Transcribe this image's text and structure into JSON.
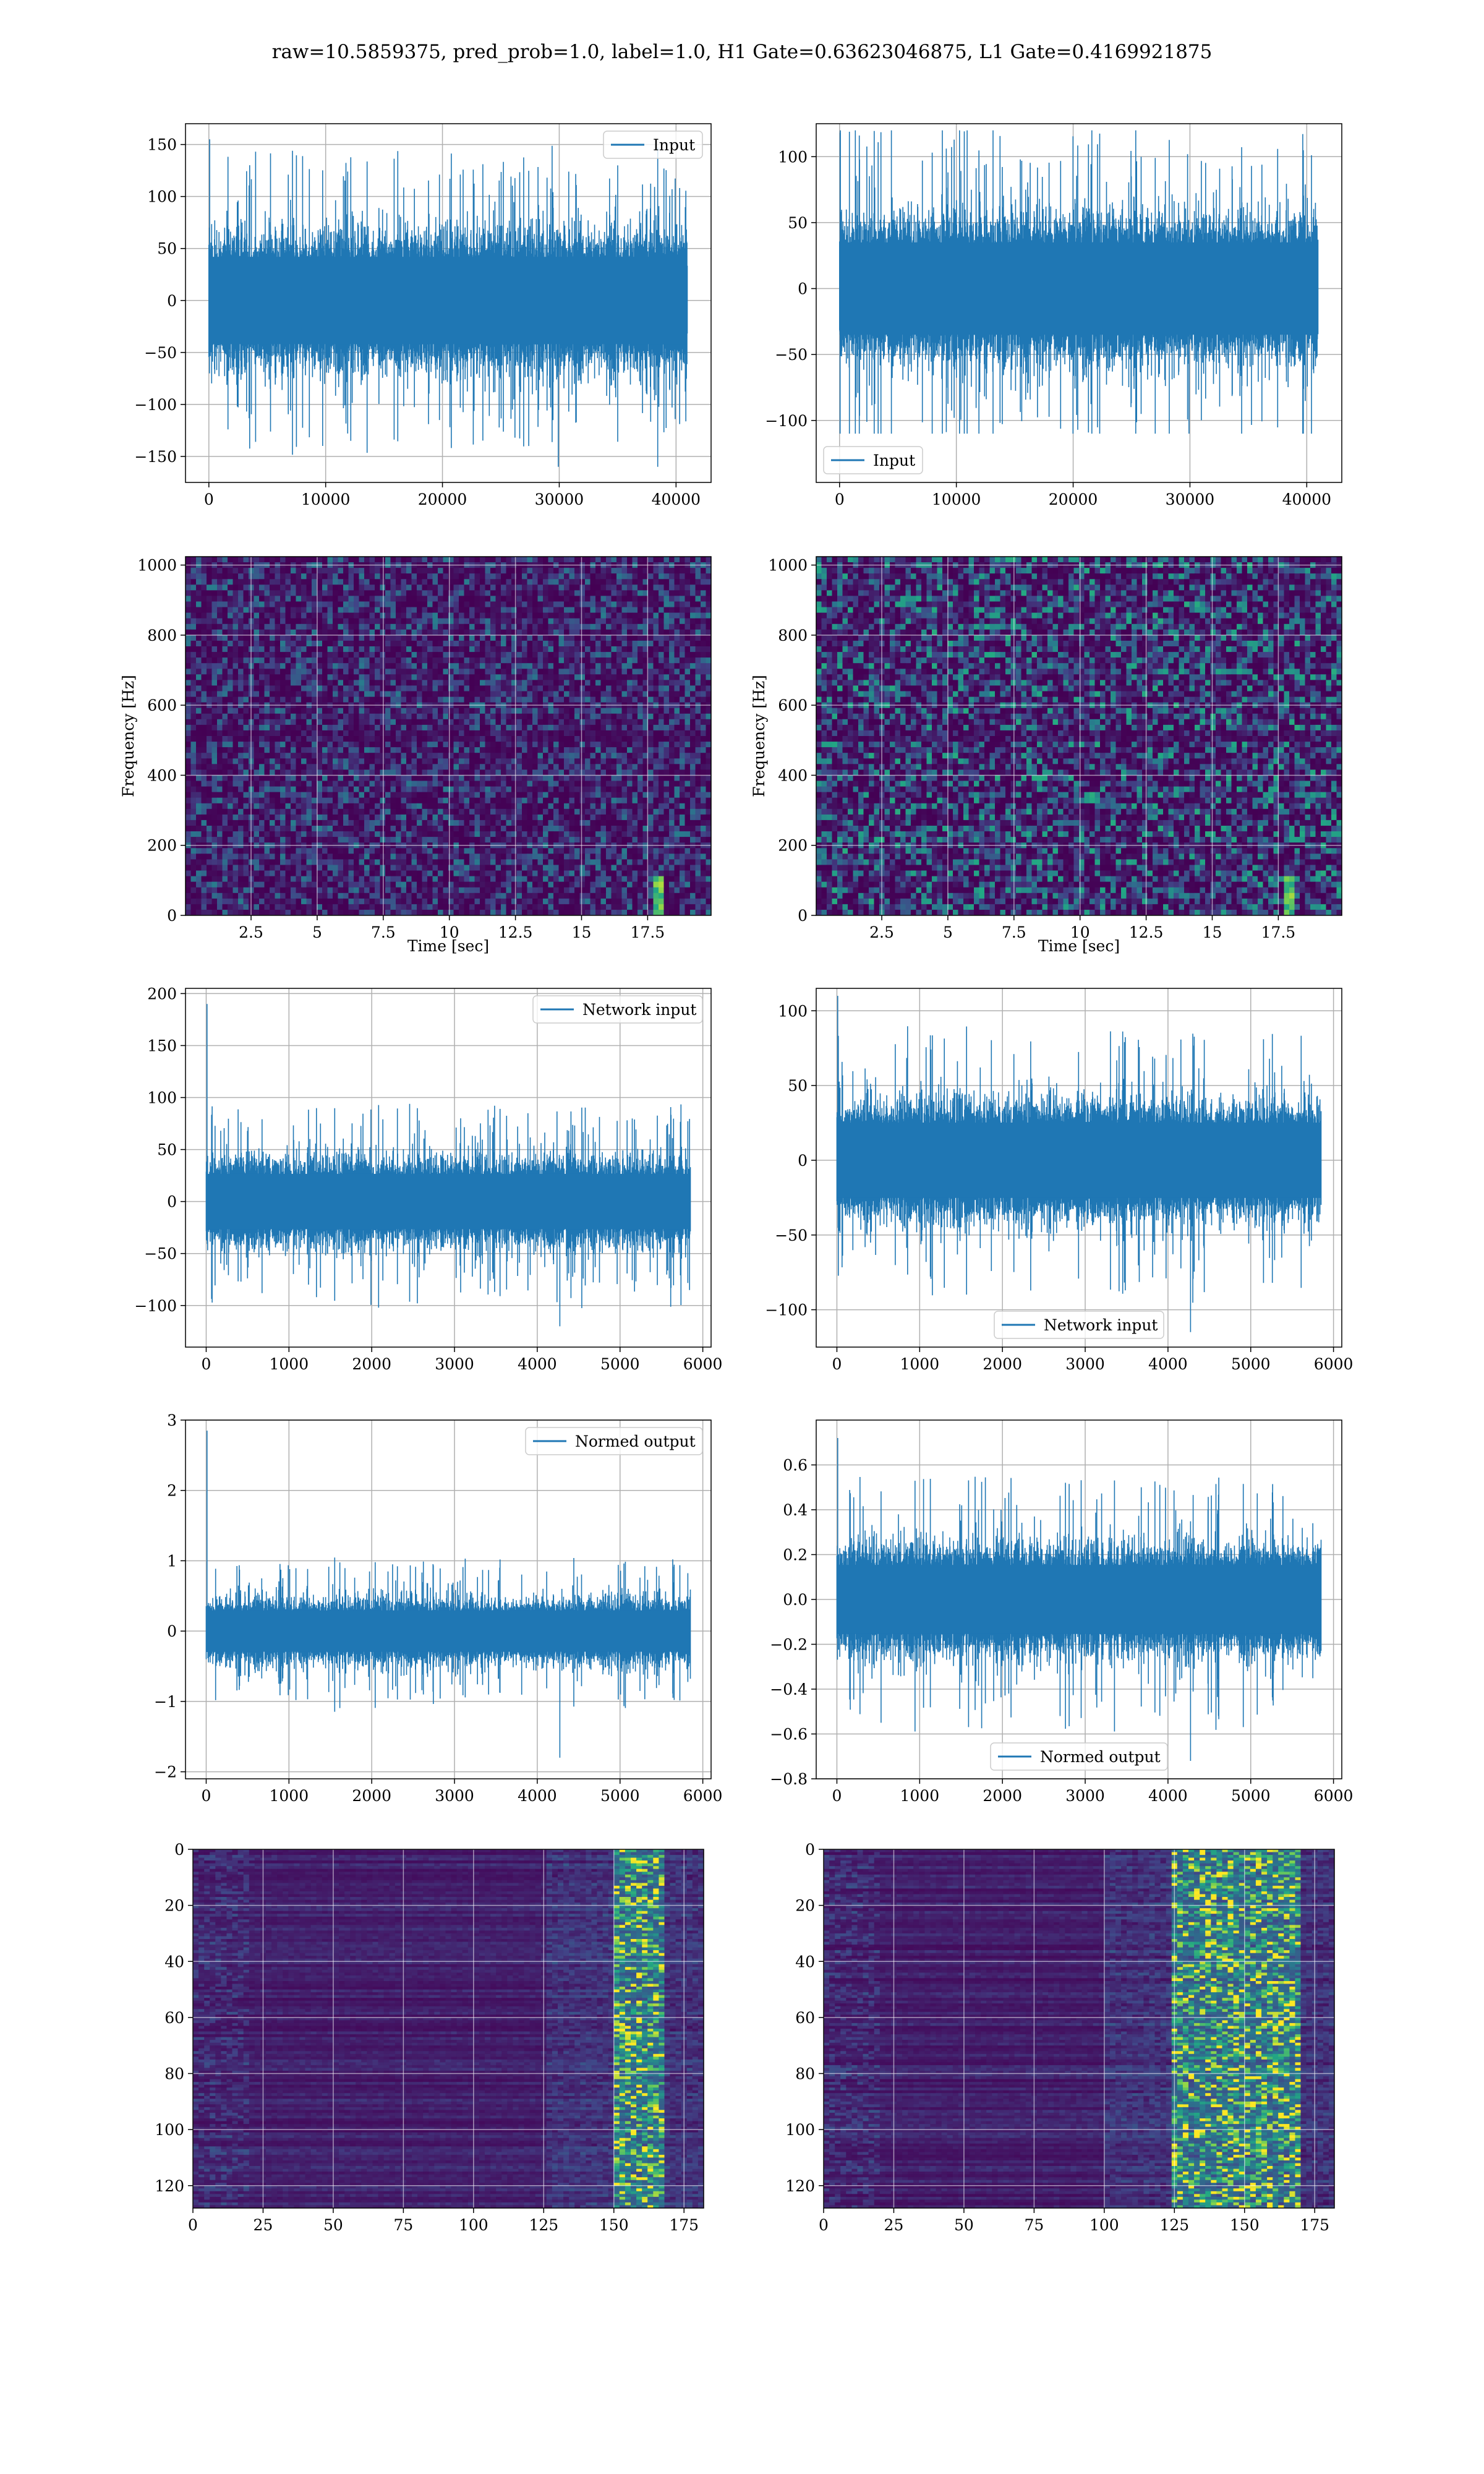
{
  "figure": {
    "title": "raw=10.5859375, pred_prob=1.0, label=1.0, H1 Gate=0.63623046875, L1 Gate=0.4169921875"
  },
  "colors": {
    "series": "#1f77b4",
    "viridis_dark": "#440154",
    "viridis_mid": "#21918c",
    "viridis_bright": "#fde725",
    "grid": "#b0b0b0"
  },
  "chart_data": [
    {
      "id": "input-h1",
      "type": "line",
      "series": [
        {
          "name": "Input",
          "amplitude_envelope": 60,
          "spike_max": 155,
          "spike_min": -160
        }
      ],
      "xlim": [
        -2000,
        43000
      ],
      "ylim": [
        -175,
        170
      ],
      "xticks": [
        0,
        10000,
        20000,
        30000,
        40000
      ],
      "yticks": [
        -150,
        -100,
        -50,
        0,
        50,
        100,
        150
      ],
      "data_range": [
        0,
        40960
      ],
      "legend": "upper right",
      "grid": true
    },
    {
      "id": "input-l1",
      "type": "line",
      "series": [
        {
          "name": "Input",
          "amplitude_envelope": 50,
          "spike_max": 120,
          "spike_min": -110
        }
      ],
      "xlim": [
        -2000,
        43000
      ],
      "ylim": [
        -147,
        125
      ],
      "xticks": [
        0,
        10000,
        20000,
        30000,
        40000
      ],
      "yticks": [
        -100,
        -50,
        0,
        50,
        100
      ],
      "data_range": [
        0,
        40960
      ],
      "legend": "lower left",
      "grid": true
    },
    {
      "id": "spectrogram-h1",
      "type": "heatmap",
      "xlabel": "Time [sec]",
      "ylabel": "Frequency [Hz]",
      "xlim": [
        0.02,
        19.9
      ],
      "ylim": [
        0,
        1024
      ],
      "xticks": [
        2.5,
        5.0,
        7.5,
        10.0,
        12.5,
        15.0,
        17.5
      ],
      "yticks": [
        0,
        200,
        400,
        600,
        800,
        1000
      ],
      "grid": true,
      "colormap": "viridis",
      "hotspot_time": 17.9
    },
    {
      "id": "spectrogram-l1",
      "type": "heatmap",
      "xlabel": "Time [sec]",
      "ylabel": "Frequency [Hz]",
      "xlim": [
        0.02,
        19.9
      ],
      "ylim": [
        0,
        1024
      ],
      "xticks": [
        2.5,
        5.0,
        7.5,
        10.0,
        12.5,
        15.0,
        17.5
      ],
      "yticks": [
        0,
        200,
        400,
        600,
        800,
        1000
      ],
      "grid": true,
      "colormap": "viridis",
      "hotspot_time": 17.9
    },
    {
      "id": "network-input-h1",
      "type": "line",
      "series": [
        {
          "name": "Network input",
          "amplitude_envelope": 38,
          "spike_max": 190,
          "spike_min": -120
        }
      ],
      "xlim": [
        -250,
        6100
      ],
      "ylim": [
        -140,
        205
      ],
      "xticks": [
        0,
        1000,
        2000,
        3000,
        4000,
        5000,
        6000
      ],
      "yticks": [
        -100,
        -50,
        0,
        50,
        100,
        150,
        200
      ],
      "data_range": [
        0,
        5850
      ],
      "legend": "upper right",
      "grid": true
    },
    {
      "id": "network-input-l1",
      "type": "line",
      "series": [
        {
          "name": "Network input",
          "amplitude_envelope": 36,
          "spike_max": 110,
          "spike_min": -115
        }
      ],
      "xlim": [
        -250,
        6100
      ],
      "ylim": [
        -125,
        115
      ],
      "xticks": [
        0,
        1000,
        2000,
        3000,
        4000,
        5000,
        6000
      ],
      "yticks": [
        -100,
        -50,
        0,
        50,
        100
      ],
      "data_range": [
        0,
        5850
      ],
      "legend": "lower center",
      "grid": true
    },
    {
      "id": "normed-output-h1",
      "type": "line",
      "series": [
        {
          "name": "Normed output",
          "amplitude_envelope": 0.42,
          "spike_max": 2.85,
          "spike_min": -1.8
        }
      ],
      "xlim": [
        -250,
        6100
      ],
      "ylim": [
        -2.1,
        3.0
      ],
      "xticks": [
        0,
        1000,
        2000,
        3000,
        4000,
        5000,
        6000
      ],
      "yticks": [
        -2,
        -1,
        0,
        1,
        2,
        3
      ],
      "data_range": [
        0,
        5850
      ],
      "legend": "upper right",
      "grid": true
    },
    {
      "id": "normed-output-l1",
      "type": "line",
      "series": [
        {
          "name": "Normed output",
          "amplitude_envelope": 0.22,
          "spike_max": 0.72,
          "spike_min": -0.72
        }
      ],
      "xlim": [
        -250,
        6100
      ],
      "ylim": [
        -0.8,
        0.8
      ],
      "xticks": [
        0,
        1000,
        2000,
        3000,
        4000,
        5000,
        6000
      ],
      "yticks": [
        -0.8,
        -0.6,
        -0.4,
        -0.2,
        0.0,
        0.2,
        0.4,
        0.6
      ],
      "ytick_labels": [
        "−0.8",
        "−0.6",
        "−0.4",
        "−0.2",
        "0.0",
        "0.2",
        "0.4",
        "0.6"
      ],
      "data_range": [
        0,
        5850
      ],
      "legend": "lower center",
      "grid": true
    },
    {
      "id": "feature-map-h1",
      "type": "heatmap",
      "xlim": [
        0,
        182
      ],
      "ylim": [
        128,
        0
      ],
      "xticks": [
        0,
        25,
        50,
        75,
        100,
        125,
        150,
        175
      ],
      "yticks": [
        0,
        20,
        40,
        60,
        80,
        100,
        120
      ],
      "grid": true,
      "colormap": "viridis",
      "bright_band_columns": [
        150,
        168
      ]
    },
    {
      "id": "feature-map-l1",
      "type": "heatmap",
      "xlim": [
        0,
        182
      ],
      "ylim": [
        128,
        0
      ],
      "xticks": [
        0,
        25,
        50,
        75,
        100,
        125,
        150,
        175
      ],
      "yticks": [
        0,
        20,
        40,
        60,
        80,
        100,
        120
      ],
      "grid": true,
      "colormap": "viridis",
      "bright_band_columns": [
        125,
        170
      ]
    }
  ]
}
